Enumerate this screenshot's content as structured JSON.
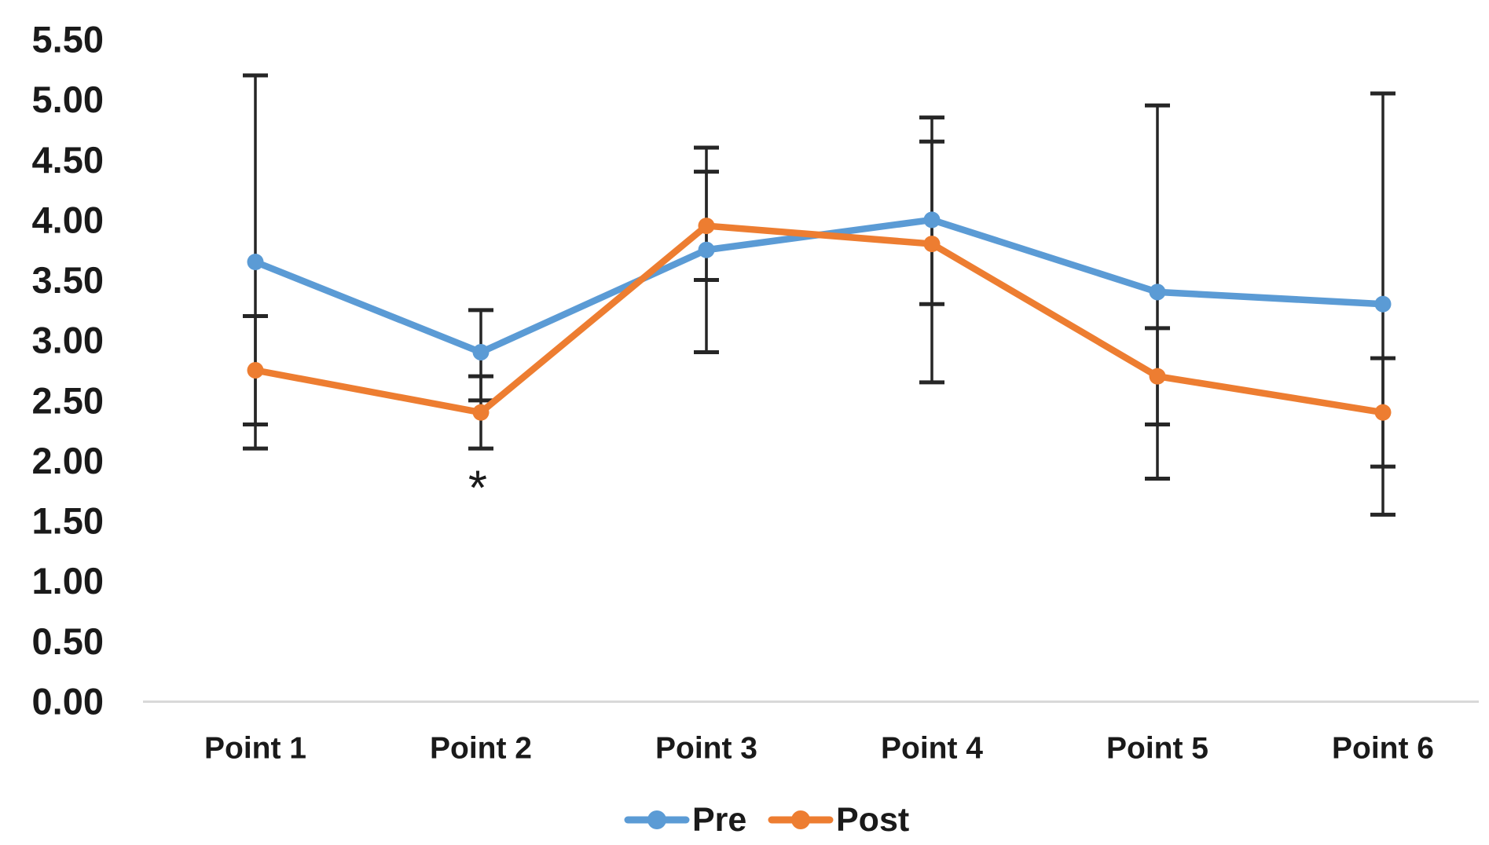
{
  "chart_data": {
    "type": "line",
    "title": "",
    "xlabel": "",
    "ylabel": "",
    "categories": [
      "Point 1",
      "Point 2",
      "Point 3",
      "Point 4",
      "Point 5",
      "Point 6"
    ],
    "series": [
      {
        "name": "Pre",
        "color": "#5B9BD5",
        "values": [
          3.65,
          2.9,
          3.75,
          4.0,
          3.4,
          3.3
        ],
        "error_low": [
          2.1,
          2.5,
          2.9,
          3.3,
          1.85,
          1.55
        ],
        "error_high": [
          5.2,
          3.25,
          4.6,
          4.65,
          4.95,
          5.05
        ]
      },
      {
        "name": "Post",
        "color": "#ED7D31",
        "values": [
          2.75,
          2.4,
          3.95,
          3.8,
          2.7,
          2.4
        ],
        "error_low": [
          2.3,
          2.1,
          3.5,
          2.65,
          2.3,
          1.95
        ],
        "error_high": [
          3.2,
          2.7,
          4.4,
          4.85,
          3.1,
          2.85
        ]
      }
    ],
    "ylim": [
      0.0,
      5.5
    ],
    "ytick_step": 0.5,
    "ytick_labels": [
      "0.00",
      "0.50",
      "1.00",
      "1.50",
      "2.00",
      "2.50",
      "3.00",
      "3.50",
      "4.00",
      "4.50",
      "5.00",
      "5.50"
    ],
    "grid": "off",
    "legend_position": "bottom-center",
    "annotations": [
      {
        "text": "*",
        "category_index": 1,
        "below_point": true
      }
    ],
    "colors": {
      "axis_line": "#D9D9D9",
      "error_bar": "#262626",
      "text": "#1A1A1A",
      "background": "#FFFFFF"
    }
  }
}
